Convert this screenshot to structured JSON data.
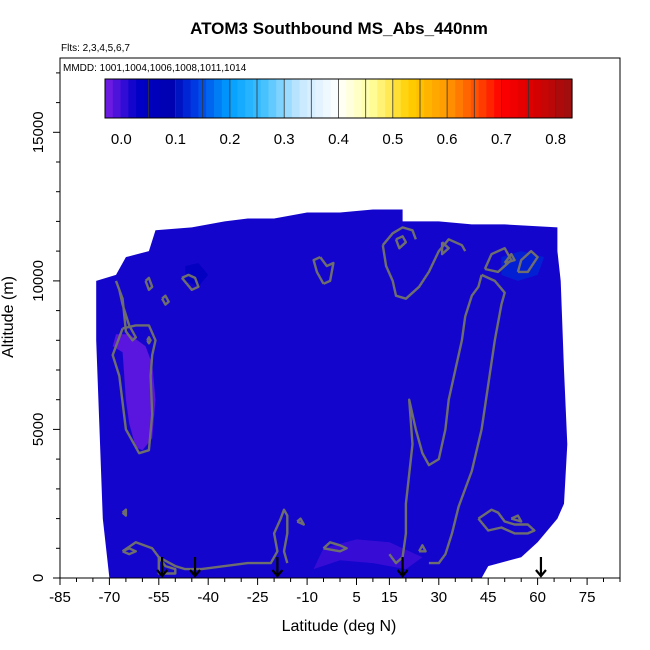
{
  "chart_data": {
    "type": "heatmap",
    "title": "ATOM3 Southbound MS_Abs_440nm",
    "flights_label": "Flts: 2,3,4,5,6,7",
    "dates_label": "MMDD: 1001,1004,1006,1008,1011,1014",
    "xlabel": "Latitude (deg N)",
    "ylabel": "Altitude (m)",
    "xlim": [
      -85,
      85
    ],
    "ylim": [
      0,
      17500
    ],
    "x_tick_labels": [
      "-85",
      "-70",
      "-55",
      "-40",
      "-25",
      "-10",
      "5",
      "15",
      "30",
      "45",
      "60",
      "75"
    ],
    "x_tick_values": [
      -85,
      -70,
      -55,
      -40,
      -25,
      -10,
      5,
      15,
      30,
      45,
      60,
      75
    ],
    "y_tick_labels": [
      "0",
      "5000",
      "10000",
      "15000"
    ],
    "y_tick_values": [
      0,
      5000,
      10000,
      15000
    ],
    "colorbar": {
      "range": [
        -0.03,
        0.83
      ],
      "tick_labels": [
        "0.0",
        "0.1",
        "0.2",
        "0.3",
        "0.4",
        "0.5",
        "0.6",
        "0.7",
        "0.8"
      ],
      "tick_values": [
        0.0,
        0.1,
        0.2,
        0.3,
        0.4,
        0.5,
        0.6,
        0.7,
        0.8
      ],
      "stops": [
        {
          "v": -0.03,
          "c": "#7a1ee6"
        },
        {
          "v": 0.03,
          "c": "#0000c8"
        },
        {
          "v": 0.09,
          "c": "#0000b0"
        },
        {
          "v": 0.13,
          "c": "#0030e0"
        },
        {
          "v": 0.2,
          "c": "#00a0ff"
        },
        {
          "v": 0.26,
          "c": "#40c0ff"
        },
        {
          "v": 0.33,
          "c": "#c8e8ff"
        },
        {
          "v": 0.4,
          "c": "#ffffff"
        },
        {
          "v": 0.46,
          "c": "#ffffa0"
        },
        {
          "v": 0.53,
          "c": "#ffd000"
        },
        {
          "v": 0.6,
          "c": "#ff9900"
        },
        {
          "v": 0.66,
          "c": "#ff4400"
        },
        {
          "v": 0.7,
          "c": "#ff0000"
        },
        {
          "v": 0.76,
          "c": "#d80000"
        },
        {
          "v": 0.83,
          "c": "#9a1010"
        }
      ]
    },
    "data_envelope": [
      [
        -70,
        0
      ],
      [
        -72,
        2000
      ],
      [
        -73,
        5000
      ],
      [
        -74,
        8000
      ],
      [
        -74,
        10000
      ],
      [
        -68,
        10200
      ],
      [
        -65,
        10800
      ],
      [
        -58,
        11000
      ],
      [
        -56,
        11700
      ],
      [
        -45,
        11800
      ],
      [
        -35,
        12000
      ],
      [
        -28,
        12100
      ],
      [
        -20,
        12100
      ],
      [
        -10,
        12300
      ],
      [
        0,
        12300
      ],
      [
        10,
        12400
      ],
      [
        19,
        12400
      ],
      [
        19,
        12000
      ],
      [
        30,
        12000
      ],
      [
        40,
        11900
      ],
      [
        50,
        11900
      ],
      [
        66,
        11800
      ],
      [
        66,
        11000
      ],
      [
        67,
        10000
      ],
      [
        68,
        7000
      ],
      [
        69,
        4500
      ],
      [
        68,
        2500
      ],
      [
        66,
        2000
      ],
      [
        60,
        1200
      ],
      [
        55,
        700
      ],
      [
        45,
        400
      ],
      [
        43,
        0
      ],
      [
        -70,
        0
      ]
    ],
    "abs_level_regions": [
      {
        "value": -0.02,
        "points": [
          [
            -69,
            7800
          ],
          [
            -66,
            7600
          ],
          [
            -65,
            6000
          ],
          [
            -64,
            5200
          ],
          [
            -62,
            4400
          ],
          [
            -60,
            4300
          ],
          [
            -57,
            4700
          ],
          [
            -56,
            6000
          ],
          [
            -57,
            7200
          ],
          [
            -59,
            7800
          ],
          [
            -64,
            8200
          ],
          [
            -68,
            8200
          ]
        ]
      },
      {
        "value": 0.05,
        "points": [
          [
            -47,
            10000
          ],
          [
            -43,
            9800
          ],
          [
            -40,
            10200
          ],
          [
            -43,
            10600
          ],
          [
            -47,
            10500
          ]
        ]
      },
      {
        "value": 0.12,
        "points": [
          [
            49,
            10200
          ],
          [
            54,
            10000
          ],
          [
            60,
            10200
          ],
          [
            62,
            10800
          ],
          [
            55,
            11000
          ],
          [
            49,
            10800
          ]
        ]
      },
      {
        "value": 0.0,
        "points": [
          [
            -8,
            300
          ],
          [
            0,
            600
          ],
          [
            10,
            500
          ],
          [
            20,
            300
          ],
          [
            25,
            700
          ],
          [
            15,
            1200
          ],
          [
            5,
            1300
          ],
          [
            -5,
            1000
          ]
        ]
      }
    ],
    "contours": [
      [
        [
          -68,
          10000
        ],
        [
          -66,
          9400
        ],
        [
          -65,
          8300
        ],
        [
          -63,
          8000
        ],
        [
          -62,
          8100
        ],
        [
          -64,
          8500
        ],
        [
          -66,
          9200
        ],
        [
          -67,
          9700
        ],
        [
          -68,
          10000
        ]
      ],
      [
        [
          -66,
          8400
        ],
        [
          -69,
          7500
        ],
        [
          -67,
          6800
        ],
        [
          -65,
          5000
        ],
        [
          -61,
          4200
        ],
        [
          -58,
          4300
        ],
        [
          -57,
          5500
        ],
        [
          -57.5,
          6800
        ],
        [
          -57,
          7500
        ],
        [
          -56,
          8000
        ],
        [
          -58,
          8500
        ],
        [
          -62,
          8500
        ],
        [
          -66,
          8400
        ]
      ],
      [
        [
          -58.5,
          8000
        ],
        [
          -58,
          7900
        ],
        [
          -57.5,
          8000
        ],
        [
          -58,
          8100
        ],
        [
          -58.5,
          8000
        ]
      ],
      [
        [
          -48,
          10100
        ],
        [
          -46,
          10200
        ],
        [
          -44,
          10100
        ],
        [
          -43,
          9800
        ],
        [
          -45,
          9700
        ],
        [
          -48,
          10100
        ]
      ],
      [
        [
          -59,
          10000
        ],
        [
          -58,
          9700
        ],
        [
          -57,
          9800
        ],
        [
          -58,
          10100
        ],
        [
          -59,
          10000
        ]
      ],
      [
        [
          -54,
          9400
        ],
        [
          -53,
          9200
        ],
        [
          -52,
          9300
        ],
        [
          -53,
          9500
        ],
        [
          -54,
          9400
        ]
      ],
      [
        [
          -6,
          10800
        ],
        [
          -4,
          10500
        ],
        [
          -2,
          10600
        ],
        [
          -3,
          10000
        ],
        [
          -5,
          9900
        ]
      ],
      [
        [
          -6,
          10800
        ],
        [
          -8,
          10700
        ],
        [
          -7,
          10300
        ],
        [
          -5,
          9900
        ]
      ],
      [
        [
          13,
          11200
        ],
        [
          16,
          11600
        ],
        [
          19,
          11800
        ],
        [
          22,
          11700
        ],
        [
          23,
          11400
        ]
      ],
      [
        [
          13,
          11200
        ],
        [
          14,
          10500
        ],
        [
          16,
          10000
        ],
        [
          17,
          9500
        ],
        [
          20,
          9400
        ],
        [
          24,
          9800
        ],
        [
          27,
          10300
        ],
        [
          30,
          11000
        ],
        [
          33,
          11400
        ],
        [
          37,
          11200
        ],
        [
          38,
          11000
        ]
      ],
      [
        [
          17,
          11400
        ],
        [
          19,
          11500
        ],
        [
          20,
          11300
        ],
        [
          18,
          11100
        ],
        [
          17,
          11400
        ]
      ],
      [
        [
          31,
          11300
        ],
        [
          33,
          11100
        ],
        [
          31,
          10900
        ],
        [
          31,
          11300
        ]
      ],
      [
        [
          43,
          10200
        ],
        [
          42,
          9800
        ],
        [
          40,
          9500
        ],
        [
          38,
          8800
        ],
        [
          37,
          8000
        ],
        [
          35,
          7000
        ],
        [
          33,
          6000
        ],
        [
          32,
          5000
        ],
        [
          30,
          4000
        ],
        [
          27,
          3800
        ],
        [
          25,
          4200
        ],
        [
          23,
          5000
        ],
        [
          21,
          6000
        ],
        [
          22,
          4500
        ],
        [
          21,
          3500
        ],
        [
          20,
          2500
        ],
        [
          20,
          1500
        ],
        [
          19,
          700
        ],
        [
          17,
          500
        ],
        [
          15,
          800
        ]
      ],
      [
        [
          43,
          10200
        ],
        [
          47,
          10000
        ],
        [
          50,
          9600
        ],
        [
          49,
          9200
        ],
        [
          47,
          8000
        ],
        [
          45,
          6500
        ],
        [
          43,
          5000
        ],
        [
          40,
          3600
        ],
        [
          36,
          2400
        ],
        [
          34,
          1500
        ],
        [
          32,
          800
        ],
        [
          30,
          500
        ],
        [
          27,
          500
        ]
      ],
      [
        [
          44,
          10400
        ],
        [
          46,
          10900
        ],
        [
          50,
          11100
        ],
        [
          52,
          10700
        ],
        [
          48,
          10300
        ],
        [
          44,
          10400
        ]
      ],
      [
        [
          50,
          10600
        ],
        [
          52,
          10900
        ],
        [
          53,
          10700
        ],
        [
          50,
          10600
        ]
      ],
      [
        [
          54,
          10300
        ],
        [
          57,
          10300
        ],
        [
          60,
          10800
        ],
        [
          58,
          11000
        ],
        [
          55,
          10700
        ],
        [
          54,
          10300
        ]
      ],
      [
        [
          42,
          2000
        ],
        [
          46,
          2300
        ],
        [
          48,
          2200
        ],
        [
          50,
          1900
        ],
        [
          53,
          1800
        ],
        [
          57,
          1800
        ],
        [
          59,
          1600
        ],
        [
          57,
          1500
        ],
        [
          53,
          1500
        ],
        [
          49,
          1700
        ],
        [
          45,
          1600
        ],
        [
          42,
          2000
        ]
      ],
      [
        [
          52,
          2000
        ],
        [
          54,
          2100
        ],
        [
          55,
          1900
        ],
        [
          52,
          2000
        ]
      ],
      [
        [
          24,
          900
        ],
        [
          25,
          1100
        ],
        [
          26,
          900
        ],
        [
          24,
          900
        ]
      ],
      [
        [
          -66,
          900
        ],
        [
          -62,
          1200
        ],
        [
          -57,
          1000
        ],
        [
          -55,
          700
        ],
        [
          -50,
          400
        ],
        [
          -47,
          300
        ],
        [
          -42,
          300
        ],
        [
          -35,
          400
        ],
        [
          -28,
          500
        ],
        [
          -21,
          500
        ],
        [
          -19,
          900
        ],
        [
          -20,
          1500
        ],
        [
          -18,
          2000
        ],
        [
          -17,
          2300
        ],
        [
          -16,
          2100
        ],
        [
          -16,
          1500
        ],
        [
          -17,
          900
        ],
        [
          -16,
          500
        ]
      ],
      [
        [
          -66,
          900
        ],
        [
          -64,
          1000
        ],
        [
          -62,
          900
        ],
        [
          -64,
          800
        ],
        [
          -66,
          900
        ]
      ],
      [
        [
          -55,
          700
        ],
        [
          -53,
          400
        ],
        [
          -50,
          300
        ],
        [
          -50,
          150
        ],
        [
          -55,
          150
        ],
        [
          -55,
          700
        ]
      ],
      [
        [
          -13,
          1900
        ],
        [
          -12,
          2000
        ],
        [
          -11,
          1800
        ],
        [
          -13,
          1900
        ]
      ],
      [
        [
          -66,
          2200
        ],
        [
          -65,
          2300
        ],
        [
          -65,
          2100
        ],
        [
          -66,
          2200
        ]
      ],
      [
        [
          -5,
          1000
        ],
        [
          -3,
          1200
        ],
        [
          0,
          1100
        ],
        [
          2,
          1000
        ],
        [
          0,
          900
        ],
        [
          -5,
          1000
        ]
      ]
    ],
    "flight_marker_latitudes": [
      -54,
      -44,
      -19,
      19,
      61
    ],
    "grid": false
  }
}
